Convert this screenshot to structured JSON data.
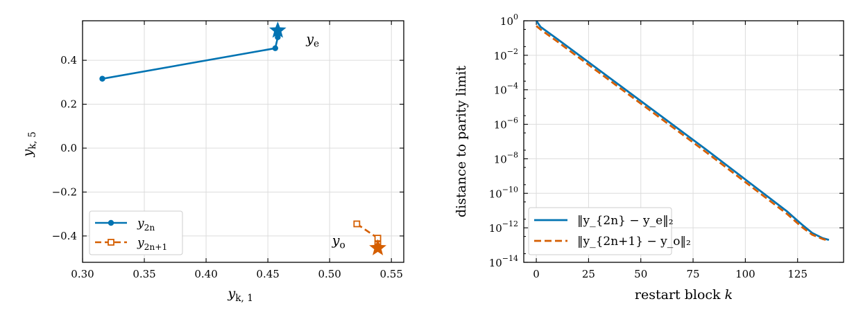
{
  "colors": {
    "blue": "#0173b2",
    "orange": "#d55e00",
    "grid": "#dcdcdc"
  },
  "chart_data": [
    {
      "type": "line",
      "xlabel": "y_{k,1}",
      "ylabel": "y_{k,5}",
      "xlim": [
        0.3,
        0.56
      ],
      "ylim": [
        -0.52,
        0.58
      ],
      "xticks": [
        "0.30",
        "0.35",
        "0.40",
        "0.45",
        "0.50",
        "0.55"
      ],
      "yticks": [
        "−0.4",
        "−0.2",
        "0.0",
        "0.2",
        "0.4"
      ],
      "grid": true,
      "legend_position": "lower-left",
      "series": [
        {
          "name": "y_{2n}",
          "color": "#0173b2",
          "marker": "circle",
          "linestyle": "solid",
          "x": [
            0.316,
            0.456,
            0.458,
            0.458,
            0.458
          ],
          "y": [
            0.316,
            0.455,
            0.505,
            0.528,
            0.536
          ]
        },
        {
          "name": "y_{2n+1}",
          "color": "#d55e00",
          "marker": "square",
          "linestyle": "dashed",
          "x": [
            0.522,
            0.539,
            0.539,
            0.539
          ],
          "y": [
            -0.345,
            -0.41,
            -0.438,
            -0.45
          ]
        }
      ],
      "limit_points": [
        {
          "label": "y_e",
          "x": 0.458,
          "y": 0.536,
          "color": "#0173b2",
          "marker": "star"
        },
        {
          "label": "y_o",
          "x": 0.539,
          "y": -0.455,
          "color": "#d55e00",
          "marker": "star"
        }
      ],
      "annotations": [
        {
          "text": "y_e",
          "x": 0.481,
          "y": 0.478
        },
        {
          "text": "y_o",
          "x": 0.502,
          "y": -0.44
        }
      ]
    },
    {
      "type": "line",
      "xlabel": "restart block k",
      "ylabel": "distance to parity limit",
      "yscale": "log",
      "xlim": [
        -6,
        147
      ],
      "ylim_log10": [
        -14,
        0
      ],
      "xticks": [
        "0",
        "25",
        "50",
        "75",
        "100",
        "125"
      ],
      "yticks_exp": [
        "0",
        "-2",
        "-4",
        "-6",
        "-8",
        "-10",
        "-12",
        "-14"
      ],
      "grid": true,
      "legend_position": "lower-left",
      "series": [
        {
          "name": "‖y_{2n} − y_e‖₂",
          "color": "#0173b2",
          "linestyle": "solid",
          "x": [
            0,
            2,
            10,
            20,
            40,
            60,
            80,
            100,
            120,
            127,
            132,
            137,
            140
          ],
          "log10_y": [
            0,
            -0.35,
            -1.05,
            -1.95,
            -3.75,
            -5.55,
            -7.35,
            -9.2,
            -11.05,
            -11.8,
            -12.3,
            -12.6,
            -12.7
          ]
        },
        {
          "name": "‖y_{2n+1} − y_o‖₂",
          "color": "#d55e00",
          "linestyle": "dashed",
          "x": [
            0,
            2,
            10,
            20,
            40,
            60,
            80,
            100,
            120,
            127,
            132,
            137,
            140
          ],
          "log10_y": [
            -0.3,
            -0.5,
            -1.2,
            -2.1,
            -3.9,
            -5.7,
            -7.5,
            -9.35,
            -11.2,
            -11.95,
            -12.4,
            -12.65,
            -12.75
          ]
        }
      ]
    }
  ]
}
